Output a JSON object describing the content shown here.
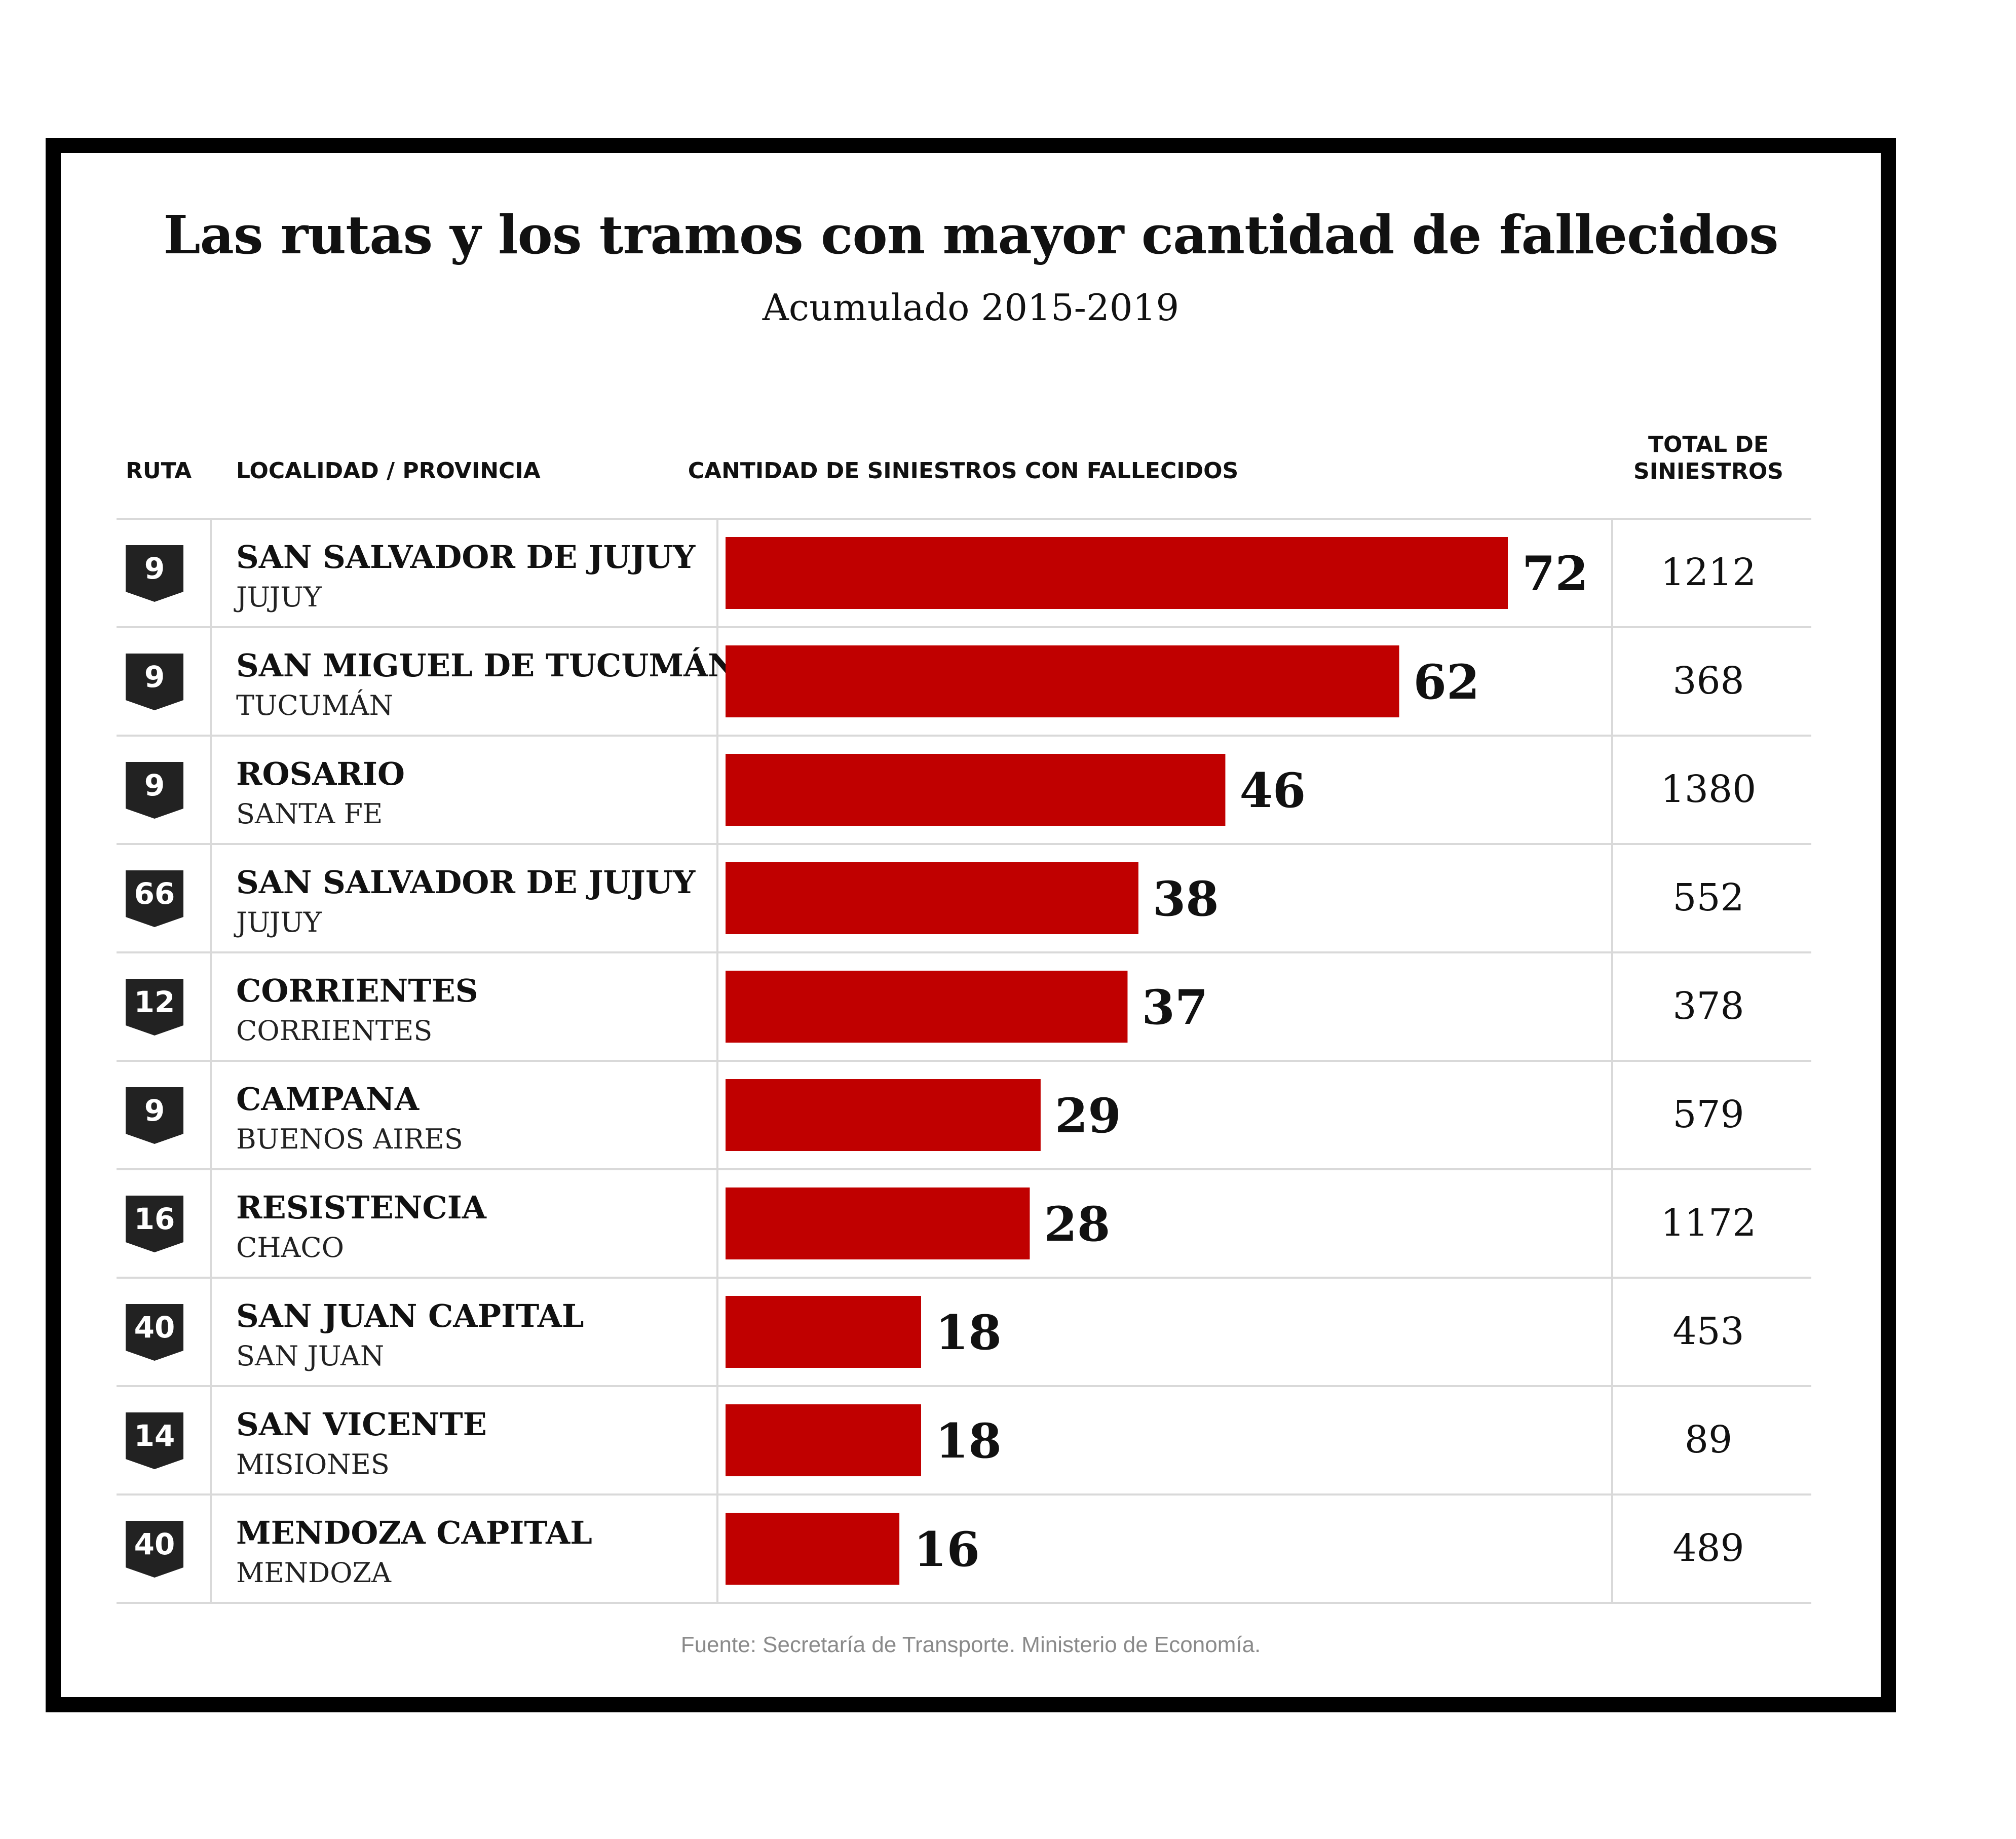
{
  "title": "Las rutas y los tramos con mayor cantidad de fallecidos",
  "subtitle": "Acumulado 2015-2019",
  "headers": {
    "ruta": "RUTA",
    "localidad": "LOCALIDAD / PROVINCIA",
    "cantidad": "CANTIDAD DE SINIESTROS CON FALLECIDOS",
    "total_line1": "TOTAL DE",
    "total_line2": "SINIESTROS"
  },
  "source": "Fuente: Secretaría de Transporte. Ministerio de Economía.",
  "colors": {
    "bar": "#c00000",
    "badge": "#222222",
    "grid": "#d9d9d9"
  },
  "chart_data": {
    "type": "bar",
    "orientation": "horizontal",
    "title": "Las rutas y los tramos con mayor cantidad de fallecidos",
    "subtitle": "Acumulado 2015-2019",
    "value_label": "CANTIDAD DE SINIESTROS CON FALLECIDOS",
    "xlim": [
      0,
      72
    ],
    "rows": [
      {
        "ruta": "9",
        "localidad": "SAN SALVADOR DE JUJUY",
        "provincia": "JUJUY",
        "fallecidos": 72,
        "total": "1212"
      },
      {
        "ruta": "9",
        "localidad": "SAN MIGUEL DE TUCUMÁN",
        "provincia": "TUCUMÁN",
        "fallecidos": 62,
        "total": "368"
      },
      {
        "ruta": "9",
        "localidad": "ROSARIO",
        "provincia": "SANTA FE",
        "fallecidos": 46,
        "total": "1380"
      },
      {
        "ruta": "66",
        "localidad": "SAN SALVADOR DE JUJUY",
        "provincia": "JUJUY",
        "fallecidos": 38,
        "total": "552"
      },
      {
        "ruta": "12",
        "localidad": "CORRIENTES",
        "provincia": "CORRIENTES",
        "fallecidos": 37,
        "total": "378"
      },
      {
        "ruta": "9",
        "localidad": "CAMPANA",
        "provincia": "BUENOS AIRES",
        "fallecidos": 29,
        "total": "579"
      },
      {
        "ruta": "16",
        "localidad": "RESISTENCIA",
        "provincia": "CHACO",
        "fallecidos": 28,
        "total": "1172"
      },
      {
        "ruta": "40",
        "localidad": "SAN JUAN CAPITAL",
        "provincia": "SAN JUAN",
        "fallecidos": 18,
        "total": "453"
      },
      {
        "ruta": "14",
        "localidad": "SAN VICENTE",
        "provincia": "MISIONES",
        "fallecidos": 18,
        "total": "89"
      },
      {
        "ruta": "40",
        "localidad": "MENDOZA CAPITAL",
        "provincia": "MENDOZA",
        "fallecidos": 16,
        "total": "489"
      }
    ]
  }
}
